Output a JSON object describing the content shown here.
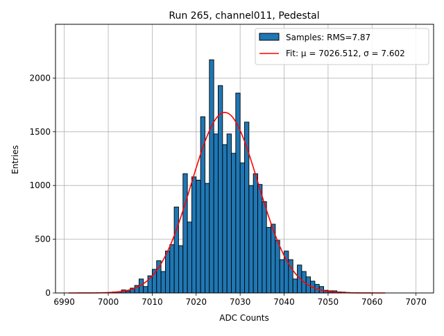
{
  "chart_data": {
    "type": "bar",
    "title": "Run 265, channel011, Pedestal",
    "xlabel": "ADC Counts",
    "ylabel": "Entries",
    "xlim": [
      6988,
      7074
    ],
    "ylim": [
      0,
      2500
    ],
    "x_ticks": [
      6990,
      7000,
      7010,
      7020,
      7030,
      7040,
      7050,
      7060,
      7070
    ],
    "y_ticks": [
      0,
      500,
      1000,
      1500,
      2000
    ],
    "grid": true,
    "legend_position": "top-right",
    "bin_width": 1,
    "bin_start": 7000,
    "histogram": {
      "name": "Samples: RMS=7.87",
      "color": "#1f77b4",
      "values": [
        5,
        10,
        12,
        28,
        18,
        45,
        70,
        130,
        60,
        160,
        220,
        300,
        200,
        390,
        450,
        800,
        440,
        1110,
        660,
        1080,
        1050,
        1640,
        1020,
        2170,
        1480,
        1930,
        1380,
        1480,
        1300,
        1860,
        1210,
        1590,
        1000,
        1110,
        1010,
        850,
        610,
        640,
        490,
        310,
        390,
        310,
        130,
        260,
        200,
        150,
        110,
        80,
        60,
        25,
        20,
        20,
        10,
        8,
        5,
        3,
        2
      ]
    },
    "fit": {
      "name": "Fit: $\\mu$ = 7026.512, $\\sigma$ = 7.602",
      "color": "#ff0000",
      "mu": 7026.512,
      "sigma": 7.602,
      "amplitude": 1680,
      "x_range": [
        6991,
        7063
      ]
    },
    "legend": [
      {
        "kind": "patch",
        "label": "Samples: RMS=7.87"
      },
      {
        "kind": "line",
        "label": "Fit: μ = 7026.512, σ = 7.602"
      }
    ]
  }
}
